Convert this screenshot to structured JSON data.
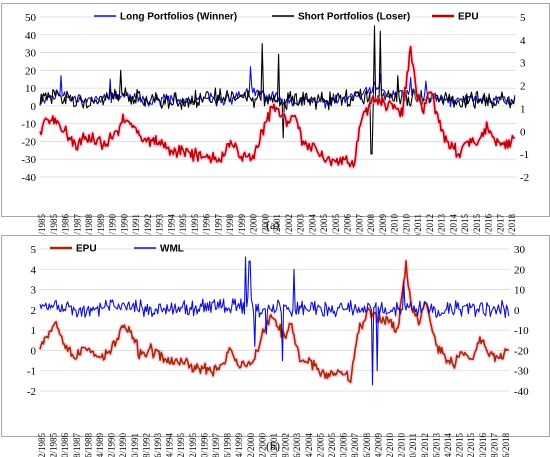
{
  "panels": [
    {
      "caption": "(a)",
      "left_ticks": [
        "50",
        "40",
        "30",
        "20",
        "10",
        "0",
        "-10",
        "-20",
        "-30",
        "-40"
      ],
      "right_ticks": [
        "5",
        "4",
        "3",
        "2",
        "1",
        "0",
        "-1",
        "-2"
      ],
      "legend": [
        {
          "label": "Long Portfolios (Winner)",
          "color": "#1010d0"
        },
        {
          "label": "Short Portfolios (Loser)",
          "color": "#000000"
        },
        {
          "label": "EPU",
          "color": "#c00000"
        }
      ]
    },
    {
      "caption": "(b)",
      "left_ticks": [
        "5",
        "4",
        "3",
        "2",
        "1",
        "0",
        "-1",
        "-2"
      ],
      "right_ticks": [
        "30",
        "20",
        "10",
        "0",
        "-10",
        "-20",
        "-30",
        "-40"
      ],
      "legend": [
        {
          "label": "EPU",
          "color": "#a52a00"
        },
        {
          "label": "WML",
          "color": "#1010d0"
        }
      ]
    }
  ],
  "chart_data": [
    {
      "type": "line",
      "x_start": "2/1985",
      "x_end": "12/2018",
      "x_tick_labels": [
        "2/1985",
        "12/1985",
        "10/1986",
        "8/1987",
        "6/1988",
        "4/1989",
        "2/1990",
        "12/1990",
        "10/1991",
        "8/1992",
        "6/1993",
        "4/1994",
        "2/1995",
        "12/1995",
        "10/1996",
        "8/1997",
        "6/1998",
        "4/1999",
        "2/2000",
        "12/2000",
        "10/2001",
        "8/2002",
        "6/2003",
        "4/2004",
        "2/2005",
        "12/2005",
        "10/2006",
        "8/2007",
        "6/2008",
        "4/2009",
        "2/2010",
        "12/2010",
        "10/2011",
        "8/2012",
        "6/2013",
        "4/2014",
        "2/2015",
        "12/2015",
        "10/2016",
        "8/2017",
        "6/2018"
      ],
      "y_left_range": [
        -40,
        50
      ],
      "y_right_range": [
        -2,
        5
      ],
      "series": [
        {
          "name": "Long Portfolios (Winner)",
          "axis": "left",
          "color": "#1010d0",
          "anchors": [
            [
              1985,
              3
            ],
            [
              1986,
              6
            ],
            [
              1987,
              5
            ],
            [
              1988,
              4
            ],
            [
              1989,
              3
            ],
            [
              1990,
              5
            ],
            [
              1991,
              6
            ],
            [
              1992,
              4
            ],
            [
              1993,
              3
            ],
            [
              1994,
              4
            ],
            [
              1995,
              3
            ],
            [
              1996,
              2
            ],
            [
              1997,
              4
            ],
            [
              1998,
              3
            ],
            [
              1999,
              5
            ],
            [
              2000,
              8
            ],
            [
              2001,
              6
            ],
            [
              2002,
              4
            ],
            [
              2003,
              3
            ],
            [
              2004,
              3
            ],
            [
              2005,
              2
            ],
            [
              2006,
              3
            ],
            [
              2007,
              4
            ],
            [
              2008,
              6
            ],
            [
              2009,
              10
            ],
            [
              2010,
              6
            ],
            [
              2011,
              8
            ],
            [
              2012,
              6
            ],
            [
              2013,
              4
            ],
            [
              2014,
              3
            ],
            [
              2015,
              3
            ],
            [
              2016,
              4
            ],
            [
              2017,
              3
            ],
            [
              2018,
              4
            ],
            [
              2019,
              3
            ]
          ],
          "amplitude": 4,
          "spikes": [
            [
              1986.6,
              17
            ],
            [
              1990.1,
              15
            ],
            [
              2000.1,
              22
            ],
            [
              2009.3,
              18
            ],
            [
              2011.5,
              16
            ],
            [
              2012.6,
              14
            ]
          ]
        },
        {
          "name": "Short Portfolios (Loser)",
          "axis": "left",
          "color": "#000000",
          "anchors": [
            [
              1985,
              4
            ],
            [
              1987,
              5
            ],
            [
              1989,
              3
            ],
            [
              1991,
              5
            ],
            [
              1993,
              3
            ],
            [
              1995,
              3
            ],
            [
              1997,
              4
            ],
            [
              1999,
              5
            ],
            [
              2001,
              4
            ],
            [
              2003,
              3
            ],
            [
              2005,
              3
            ],
            [
              2007,
              4
            ],
            [
              2009,
              6
            ],
            [
              2011,
              5
            ],
            [
              2013,
              4
            ],
            [
              2015,
              3
            ],
            [
              2017,
              4
            ],
            [
              2019,
              3
            ]
          ],
          "amplitude": 6,
          "spikes": [
            [
              2000.9,
              35
            ],
            [
              2002.1,
              29
            ],
            [
              2008.9,
              45
            ],
            [
              2009.3,
              42
            ],
            [
              2008.7,
              -27
            ],
            [
              2002.4,
              -18
            ],
            [
              1990.8,
              20
            ],
            [
              2010.6,
              17
            ]
          ]
        },
        {
          "name": "EPU",
          "axis": "right",
          "color": "#c00000",
          "anchors": [
            [
              1985,
              -0.2
            ],
            [
              1985.5,
              0.6
            ],
            [
              1986,
              0.4
            ],
            [
              1986.8,
              0.0
            ],
            [
              1987.6,
              -0.6
            ],
            [
              1988.3,
              -0.3
            ],
            [
              1989.1,
              -0.4
            ],
            [
              1989.6,
              -0.6
            ],
            [
              1990.6,
              0.0
            ],
            [
              1991.0,
              0.6
            ],
            [
              1991.7,
              0.3
            ],
            [
              1992.3,
              -0.4
            ],
            [
              1993.1,
              -0.3
            ],
            [
              1993.8,
              -0.5
            ],
            [
              1994.6,
              -0.9
            ],
            [
              1995.3,
              -0.8
            ],
            [
              1996.0,
              -1.0
            ],
            [
              1996.8,
              -1.1
            ],
            [
              1997.6,
              -1.2
            ],
            [
              1998.2,
              -1.0
            ],
            [
              1998.8,
              -0.5
            ],
            [
              1999.4,
              -1.0
            ],
            [
              2000.3,
              -1.1
            ],
            [
              2000.9,
              -0.1
            ],
            [
              2001.7,
              1.2
            ],
            [
              2002.2,
              0.8
            ],
            [
              2002.8,
              0.4
            ],
            [
              2003.2,
              1.0
            ],
            [
              2003.8,
              -0.6
            ],
            [
              2004.5,
              -0.7
            ],
            [
              2005.2,
              -1.2
            ],
            [
              2006.0,
              -1.3
            ],
            [
              2006.8,
              -1.2
            ],
            [
              2007.5,
              -1.4
            ],
            [
              2008.0,
              0.6
            ],
            [
              2008.8,
              1.4
            ],
            [
              2009.5,
              1.2
            ],
            [
              2010.3,
              1.1
            ],
            [
              2010.9,
              0.8
            ],
            [
              2011.5,
              3.8
            ],
            [
              2011.9,
              1.5
            ],
            [
              2012.4,
              1.0
            ],
            [
              2012.9,
              1.9
            ],
            [
              2013.6,
              0.2
            ],
            [
              2014.2,
              -0.6
            ],
            [
              2014.9,
              -0.9
            ],
            [
              2015.5,
              -0.4
            ],
            [
              2016.3,
              -0.6
            ],
            [
              2016.9,
              0.3
            ],
            [
              2017.5,
              -0.4
            ],
            [
              2018.3,
              -0.6
            ],
            [
              2018.9,
              -0.2
            ]
          ],
          "amplitude": 0.35
        }
      ]
    },
    {
      "type": "line",
      "x_start": "2/1985",
      "x_end": "12/2018",
      "x_tick_labels": [
        "2/1985",
        "12/1985",
        "10/1986",
        "8/1987",
        "6/1988",
        "4/1989",
        "2/1990",
        "12/1990",
        "10/1991",
        "8/1992",
        "6/1993",
        "4/1994",
        "2/1995",
        "12/1995",
        "10/1996",
        "8/1997",
        "6/1998",
        "4/1999",
        "2/2000",
        "12/2000",
        "10/2001",
        "8/2002",
        "6/2003",
        "4/2004",
        "2/2005",
        "12/2005",
        "10/2006",
        "8/2007",
        "6/2008",
        "4/2009",
        "2/2010",
        "12/2010",
        "10/2011",
        "8/2012",
        "6/2013",
        "4/2014",
        "2/2015",
        "12/2015",
        "10/2016",
        "8/2017",
        "6/2018"
      ],
      "y_left_range": [
        -2,
        5
      ],
      "y_right_range": [
        -40,
        30
      ],
      "series": [
        {
          "name": "EPU",
          "axis": "left",
          "color": "#a52a00",
          "anchors": [
            [
              1985,
              0.2
            ],
            [
              1985.6,
              0.8
            ],
            [
              1986.2,
              1.4
            ],
            [
              1986.8,
              0.5
            ],
            [
              1987.6,
              -0.4
            ],
            [
              1988.3,
              0.1
            ],
            [
              1989.1,
              -0.1
            ],
            [
              1989.6,
              -0.4
            ],
            [
              1990.6,
              0.4
            ],
            [
              1991.0,
              1.2
            ],
            [
              1991.7,
              0.8
            ],
            [
              1992.3,
              -0.2
            ],
            [
              1993.1,
              0.0
            ],
            [
              1993.8,
              -0.3
            ],
            [
              1994.6,
              -0.6
            ],
            [
              1995.3,
              -0.5
            ],
            [
              1996.0,
              -0.8
            ],
            [
              1996.8,
              -0.9
            ],
            [
              1997.6,
              -1.0
            ],
            [
              1998.2,
              -0.7
            ],
            [
              1998.8,
              0.1
            ],
            [
              1999.4,
              -0.7
            ],
            [
              2000.3,
              -0.8
            ],
            [
              2000.9,
              0.3
            ],
            [
              2001.7,
              1.7
            ],
            [
              2002.2,
              1.2
            ],
            [
              2002.8,
              0.6
            ],
            [
              2003.2,
              1.3
            ],
            [
              2003.8,
              -0.4
            ],
            [
              2004.5,
              -0.5
            ],
            [
              2005.2,
              -1.0
            ],
            [
              2006.0,
              -1.2
            ],
            [
              2006.8,
              -1.0
            ],
            [
              2007.5,
              -1.3
            ],
            [
              2008.0,
              0.9
            ],
            [
              2008.8,
              1.9
            ],
            [
              2009.5,
              1.6
            ],
            [
              2010.3,
              1.5
            ],
            [
              2010.9,
              1.0
            ],
            [
              2011.5,
              4.3
            ],
            [
              2011.9,
              2.0
            ],
            [
              2012.4,
              1.4
            ],
            [
              2012.9,
              2.5
            ],
            [
              2013.6,
              0.5
            ],
            [
              2014.2,
              -0.3
            ],
            [
              2014.9,
              -0.7
            ],
            [
              2015.5,
              -0.1
            ],
            [
              2016.3,
              -0.4
            ],
            [
              2016.9,
              0.6
            ],
            [
              2017.5,
              -0.2
            ],
            [
              2018.3,
              -0.4
            ],
            [
              2018.9,
              0.1
            ]
          ],
          "amplitude": 0.35
        },
        {
          "name": "WML",
          "axis": "right",
          "color": "#1010d0",
          "anchors": [
            [
              1985,
              2
            ],
            [
              1987,
              1
            ],
            [
              1989,
              0
            ],
            [
              1991,
              2
            ],
            [
              1993,
              1
            ],
            [
              1995,
              0
            ],
            [
              1997,
              1
            ],
            [
              1999,
              2
            ],
            [
              2001,
              1
            ],
            [
              2003,
              0
            ],
            [
              2005,
              1
            ],
            [
              2007,
              0
            ],
            [
              2009,
              1
            ],
            [
              2011,
              0
            ],
            [
              2013,
              1
            ],
            [
              2015,
              0
            ],
            [
              2017,
              1
            ],
            [
              2019,
              0
            ]
          ],
          "amplitude": 5,
          "spikes": [
            [
              1999.9,
              26
            ],
            [
              2000.2,
              24
            ],
            [
              2000.6,
              -18
            ],
            [
              2001.4,
              -12
            ],
            [
              2002.6,
              -25
            ],
            [
              2003.4,
              20
            ],
            [
              2009.1,
              -37
            ],
            [
              2009.4,
              -30
            ],
            [
              2011.3,
              14
            ]
          ]
        }
      ]
    }
  ]
}
